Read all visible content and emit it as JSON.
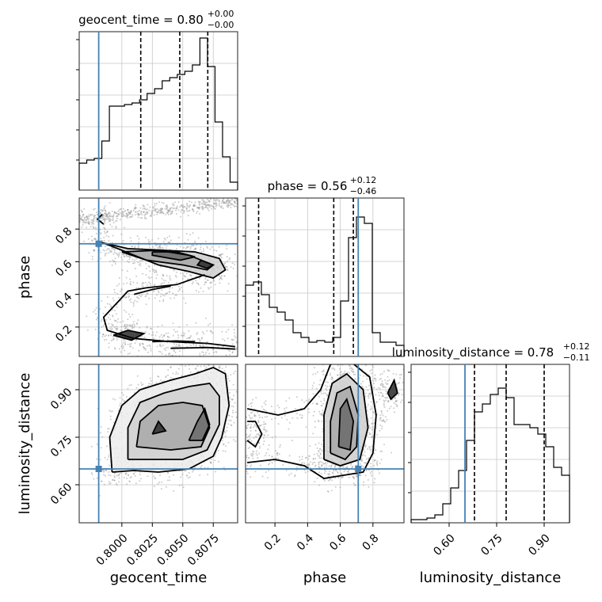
{
  "chart_data": {
    "type": "corner",
    "truth_color": "#4682b4",
    "params": [
      {
        "name": "geocent_time",
        "label": "geocent_time",
        "title_main": "geocent_time = 0.80",
        "title_plus": "+0.00",
        "title_minus": "−0.00",
        "range": [
          0.7965,
          0.8095
        ],
        "truth": 0.7981,
        "quantiles": [
          0.80155,
          0.80475,
          0.80705
        ],
        "ticks": [
          0.8,
          0.8025,
          0.805,
          0.8075
        ],
        "tick_labels": [
          "0.8000",
          "0.8025",
          "0.8050",
          "0.8075"
        ],
        "hist": [
          0.17,
          0.19,
          0.2,
          0.31,
          0.53,
          0.53,
          0.54,
          0.55,
          0.57,
          0.61,
          0.64,
          0.69,
          0.71,
          0.73,
          0.75,
          0.79,
          0.96,
          0.78,
          0.43,
          0.21,
          0.05
        ]
      },
      {
        "name": "phase",
        "label": "phase",
        "title_main": "phase = 0.56",
        "title_plus": "+0.12",
        "title_minus": "−0.46",
        "range": [
          0.02,
          0.99
        ],
        "truth": 0.71,
        "quantiles": [
          0.1,
          0.56,
          0.68
        ],
        "ticks": [
          0.2,
          0.4,
          0.6,
          0.8
        ],
        "tick_labels": [
          "0.2",
          "0.4",
          "0.6",
          "0.8"
        ],
        "hist": [
          0.45,
          0.47,
          0.39,
          0.31,
          0.28,
          0.23,
          0.15,
          0.12,
          0.09,
          0.1,
          0.09,
          0.12,
          0.35,
          0.75,
          0.88,
          0.84,
          0.15,
          0.09,
          0.09,
          0.07
        ]
      },
      {
        "name": "luminosity_distance",
        "label": "luminosity_distance",
        "title_main": "luminosity_distance = 0.78",
        "title_plus": "+0.12",
        "title_minus": "−0.11",
        "range": [
          0.48,
          0.98
        ],
        "truth": 0.65,
        "quantiles": [
          0.68,
          0.78,
          0.9
        ],
        "ticks": [
          0.6,
          0.75,
          0.9
        ],
        "tick_labels": [
          "0.60",
          "0.75",
          "0.90"
        ],
        "hist": [
          0.02,
          0.02,
          0.03,
          0.05,
          0.12,
          0.22,
          0.33,
          0.52,
          0.7,
          0.75,
          0.81,
          0.85,
          0.79,
          0.62,
          0.62,
          0.6,
          0.56,
          0.48,
          0.35,
          0.3
        ]
      }
    ],
    "contours": {
      "phase_vs_geocent_time": [
        [
          [
            0.7984,
            0.89
          ],
          [
            0.798,
            0.86
          ],
          [
            0.7985,
            0.83
          ]
        ],
        [
          [
            0.7982,
            0.72
          ],
          [
            0.8005,
            0.68
          ],
          [
            0.8035,
            0.67
          ],
          [
            0.806,
            0.66
          ],
          [
            0.808,
            0.62
          ],
          [
            0.8085,
            0.55
          ],
          [
            0.8075,
            0.5
          ],
          [
            0.8055,
            0.54
          ],
          [
            0.803,
            0.58
          ],
          [
            0.801,
            0.64
          ],
          [
            0.799,
            0.7
          ],
          [
            0.7982,
            0.72
          ]
        ],
        [
          [
            0.8,
            0.66
          ],
          [
            0.803,
            0.67
          ],
          [
            0.8055,
            0.64
          ],
          [
            0.8075,
            0.58
          ],
          [
            0.807,
            0.55
          ],
          [
            0.805,
            0.58
          ],
          [
            0.802,
            0.61
          ],
          [
            0.8,
            0.66
          ]
        ],
        [
          [
            0.8025,
            0.66
          ],
          [
            0.8045,
            0.66
          ],
          [
            0.806,
            0.63
          ],
          [
            0.8048,
            0.61
          ],
          [
            0.8025,
            0.64
          ],
          [
            0.8025,
            0.66
          ]
        ],
        [
          [
            0.8065,
            0.61
          ],
          [
            0.8075,
            0.58
          ],
          [
            0.807,
            0.56
          ],
          [
            0.8062,
            0.58
          ],
          [
            0.8065,
            0.61
          ]
        ],
        [
          [
            0.8068,
            0.52
          ],
          [
            0.8045,
            0.46
          ],
          [
            0.802,
            0.44
          ],
          [
            0.8005,
            0.42
          ],
          [
            0.7995,
            0.34
          ],
          [
            0.7985,
            0.26
          ],
          [
            0.7988,
            0.18
          ],
          [
            0.801,
            0.13
          ],
          [
            0.804,
            0.11
          ],
          [
            0.807,
            0.1
          ],
          [
            0.8093,
            0.08
          ]
        ],
        [
          [
            0.801,
            0.4
          ],
          [
            0.8025,
            0.43
          ],
          [
            0.804,
            0.45
          ]
        ],
        [
          [
            0.7993,
            0.15
          ],
          [
            0.8005,
            0.18
          ],
          [
            0.8018,
            0.16
          ],
          [
            0.8008,
            0.12
          ],
          [
            0.7993,
            0.15
          ]
        ],
        [
          [
            0.8025,
            0.11
          ],
          [
            0.8045,
            0.115
          ],
          [
            0.806,
            0.11
          ]
        ],
        [
          [
            0.804,
            0.07
          ],
          [
            0.807,
            0.075
          ],
          [
            0.8093,
            0.065
          ]
        ]
      ],
      "luminosity_distance_vs_geocent_time": [
        [
          [
            0.7992,
            0.64
          ],
          [
            0.799,
            0.75
          ],
          [
            0.8,
            0.85
          ],
          [
            0.8015,
            0.9
          ],
          [
            0.804,
            0.93
          ],
          [
            0.806,
            0.95
          ],
          [
            0.8075,
            0.97
          ],
          [
            0.8085,
            0.95
          ],
          [
            0.8088,
            0.85
          ],
          [
            0.8082,
            0.75
          ],
          [
            0.8075,
            0.69
          ],
          [
            0.8055,
            0.65
          ],
          [
            0.803,
            0.64
          ],
          [
            0.801,
            0.645
          ],
          [
            0.7992,
            0.64
          ]
        ],
        [
          [
            0.8005,
            0.68
          ],
          [
            0.8005,
            0.78
          ],
          [
            0.8015,
            0.86
          ],
          [
            0.8035,
            0.89
          ],
          [
            0.8055,
            0.91
          ],
          [
            0.8072,
            0.92
          ],
          [
            0.808,
            0.88
          ],
          [
            0.808,
            0.79
          ],
          [
            0.807,
            0.71
          ],
          [
            0.805,
            0.68
          ],
          [
            0.8025,
            0.68
          ],
          [
            0.8005,
            0.68
          ]
        ],
        [
          [
            0.8012,
            0.72
          ],
          [
            0.8015,
            0.8
          ],
          [
            0.803,
            0.85
          ],
          [
            0.805,
            0.86
          ],
          [
            0.8066,
            0.85
          ],
          [
            0.8072,
            0.78
          ],
          [
            0.8065,
            0.72
          ],
          [
            0.804,
            0.71
          ],
          [
            0.8012,
            0.72
          ]
        ],
        [
          [
            0.8055,
            0.74
          ],
          [
            0.8062,
            0.8
          ],
          [
            0.8068,
            0.84
          ],
          [
            0.8072,
            0.79
          ],
          [
            0.8066,
            0.74
          ],
          [
            0.8055,
            0.74
          ]
        ],
        [
          [
            0.8025,
            0.76
          ],
          [
            0.803,
            0.8
          ],
          [
            0.8036,
            0.77
          ],
          [
            0.8025,
            0.76
          ]
        ]
      ],
      "luminosity_distance_vs_phase": [
        [
          [
            0.03,
            0.67
          ],
          [
            0.2,
            0.68
          ],
          [
            0.38,
            0.66
          ],
          [
            0.5,
            0.62
          ],
          [
            0.62,
            0.63
          ],
          [
            0.74,
            0.64
          ],
          [
            0.8,
            0.7
          ],
          [
            0.82,
            0.82
          ],
          [
            0.78,
            0.94
          ],
          [
            0.66,
            0.99
          ],
          [
            0.54,
            0.98
          ],
          [
            0.48,
            0.9
          ],
          [
            0.38,
            0.84
          ],
          [
            0.22,
            0.82
          ],
          [
            0.03,
            0.84
          ]
        ],
        [
          [
            0.5,
            0.68
          ],
          [
            0.6,
            0.66
          ],
          [
            0.72,
            0.68
          ],
          [
            0.77,
            0.78
          ],
          [
            0.74,
            0.9
          ],
          [
            0.64,
            0.95
          ],
          [
            0.55,
            0.92
          ],
          [
            0.5,
            0.82
          ],
          [
            0.5,
            0.68
          ]
        ],
        [
          [
            0.54,
            0.7
          ],
          [
            0.63,
            0.68
          ],
          [
            0.7,
            0.72
          ],
          [
            0.71,
            0.82
          ],
          [
            0.66,
            0.91
          ],
          [
            0.58,
            0.89
          ],
          [
            0.54,
            0.8
          ],
          [
            0.54,
            0.7
          ]
        ],
        [
          [
            0.59,
            0.72
          ],
          [
            0.66,
            0.71
          ],
          [
            0.68,
            0.8
          ],
          [
            0.64,
            0.87
          ],
          [
            0.6,
            0.84
          ],
          [
            0.59,
            0.72
          ]
        ],
        [
          [
            0.03,
            0.74
          ],
          [
            0.08,
            0.72
          ],
          [
            0.12,
            0.76
          ],
          [
            0.08,
            0.8
          ],
          [
            0.03,
            0.8
          ]
        ],
        [
          [
            0.89,
            0.89
          ],
          [
            0.93,
            0.93
          ],
          [
            0.95,
            0.89
          ],
          [
            0.91,
            0.87
          ],
          [
            0.89,
            0.89
          ]
        ]
      ]
    }
  }
}
